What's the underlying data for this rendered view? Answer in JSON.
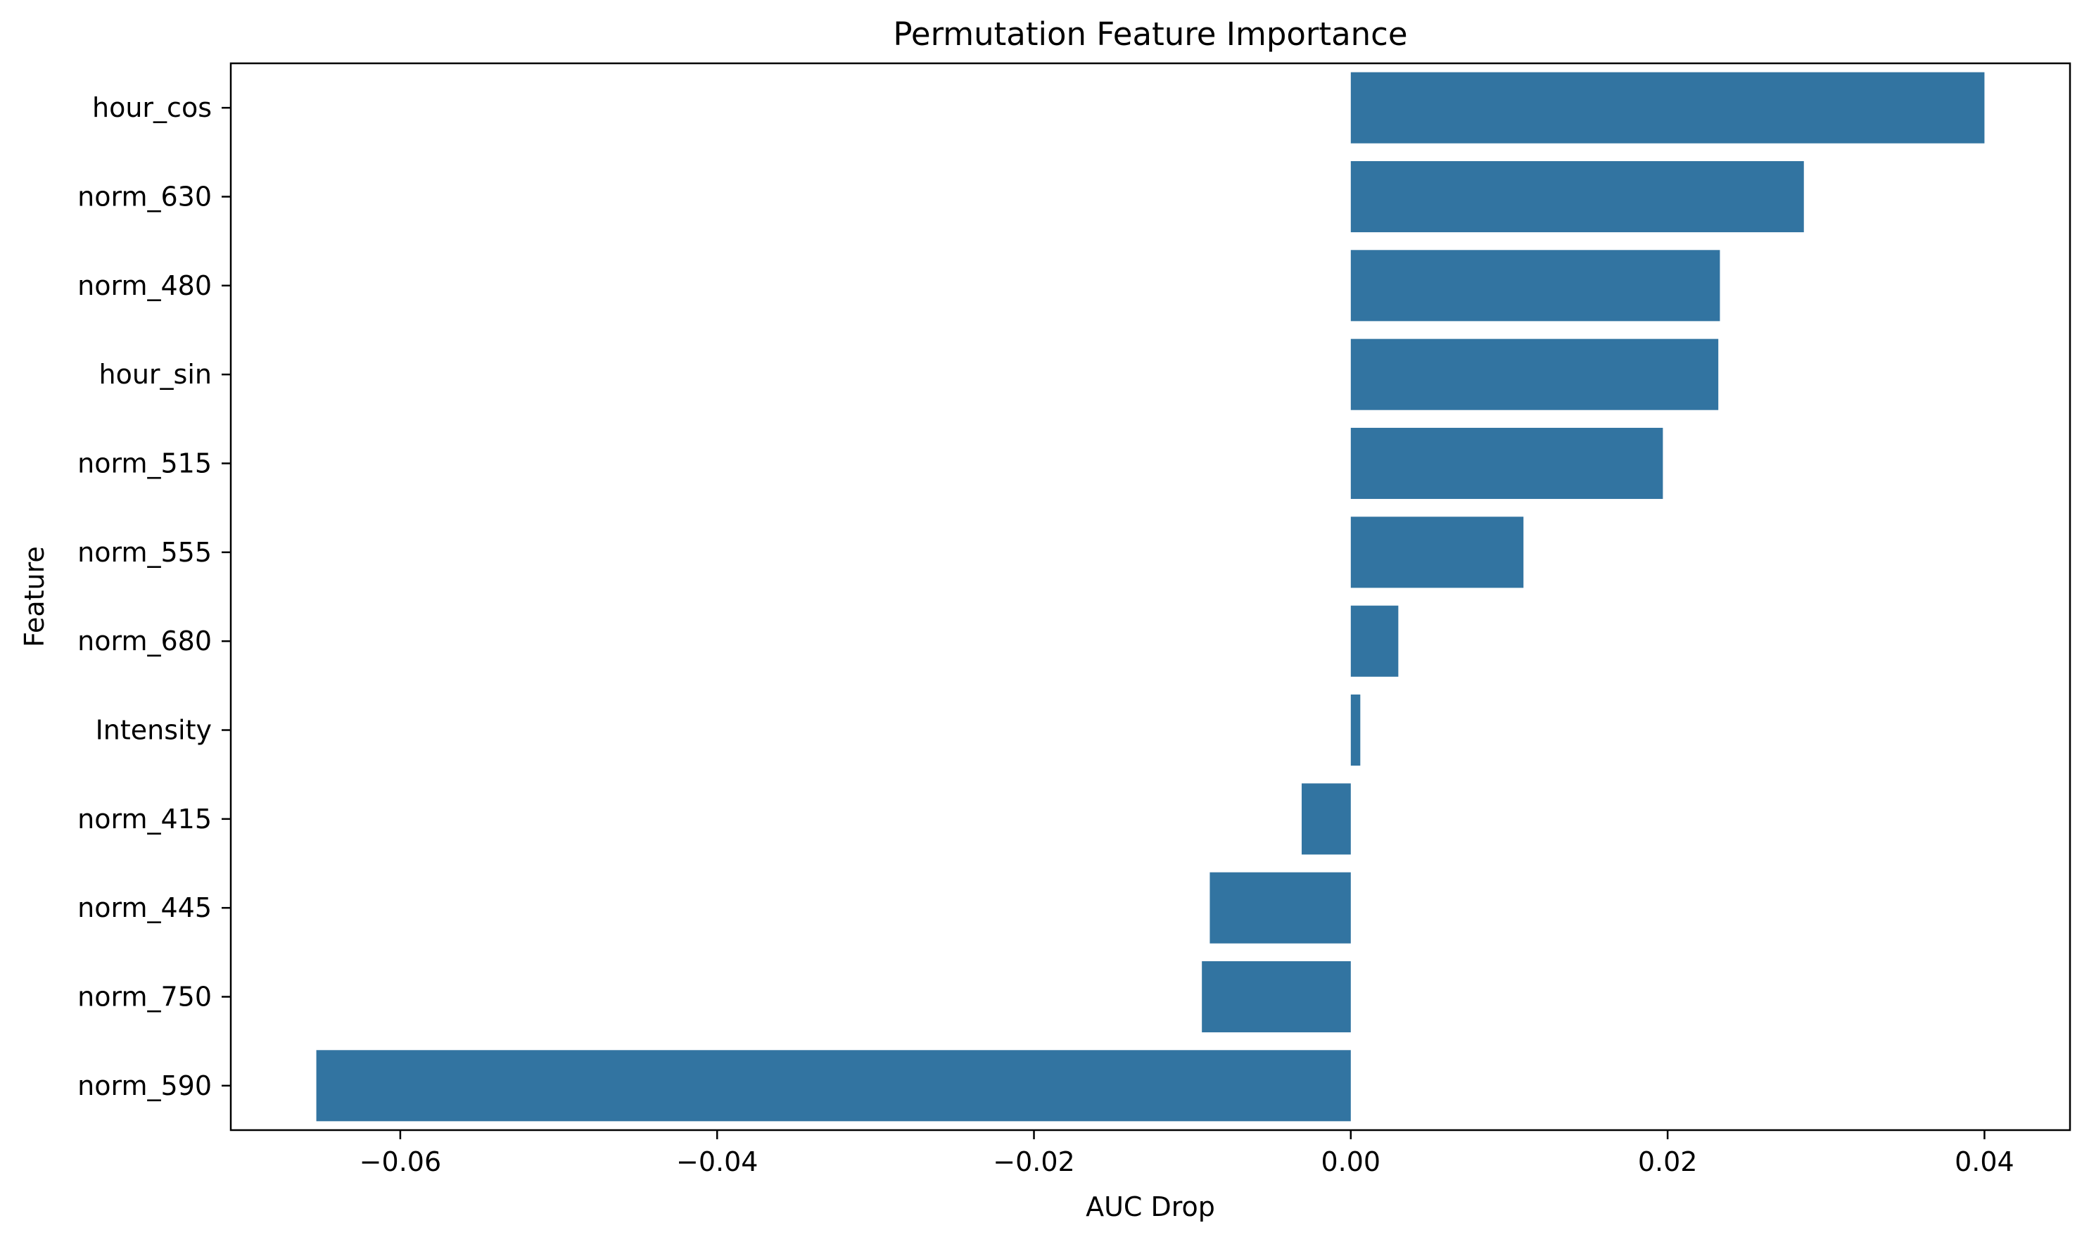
{
  "chart_data": {
    "type": "bar",
    "orientation": "horizontal",
    "title": "Permutation Feature Importance",
    "xlabel": "AUC Drop",
    "ylabel": "Feature",
    "categories": [
      "hour_cos",
      "norm_630",
      "norm_480",
      "hour_sin",
      "norm_515",
      "norm_555",
      "norm_680",
      "Intensity",
      "norm_415",
      "norm_445",
      "norm_750",
      "norm_590"
    ],
    "values": [
      0.04,
      0.0286,
      0.0233,
      0.0232,
      0.0197,
      0.0109,
      0.003,
      0.0006,
      -0.0031,
      -0.0089,
      -0.0094,
      -0.0653
    ],
    "xlim": [
      -0.0707,
      0.0454
    ],
    "xticks": [
      -0.06,
      -0.04,
      -0.02,
      0.0,
      0.02,
      0.04
    ],
    "xtick_labels": [
      "−0.06",
      "−0.04",
      "−0.02",
      "0.00",
      "0.02",
      "0.04"
    ],
    "bar_color": "#3274a1",
    "grid": false,
    "legend": "none"
  }
}
